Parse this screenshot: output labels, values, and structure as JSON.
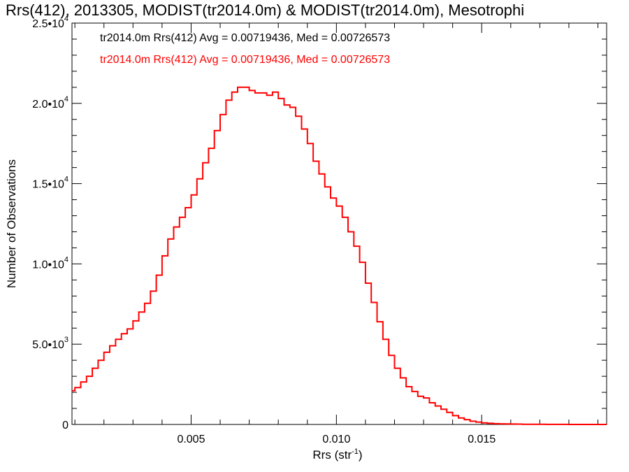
{
  "chart_data": {
    "type": "line",
    "title": "Rrs(412), 2013305, MODIST(tr2014.0m) & MODIST(tr2014.0m), Mesotrophi",
    "xlabel": "Rrs (str",
    "xlabel_sup": "-1",
    "xlabel_end": ")",
    "ylabel": "Number of Observations",
    "xlim": [
      0.0009,
      0.0193
    ],
    "ylim": [
      0,
      25000
    ],
    "x_ticks": [
      {
        "value": 0.005,
        "label": "0.005"
      },
      {
        "value": 0.01,
        "label": "0.010"
      },
      {
        "value": 0.015,
        "label": "0.015"
      }
    ],
    "y_ticks": [
      {
        "value": 0,
        "mant": "0",
        "exp": ""
      },
      {
        "value": 5000,
        "mant": "5.0•10",
        "exp": "3"
      },
      {
        "value": 10000,
        "mant": "1.0•10",
        "exp": "4"
      },
      {
        "value": 15000,
        "mant": "1.5•10",
        "exp": "4"
      },
      {
        "value": 20000,
        "mant": "2.0•10",
        "exp": "4"
      },
      {
        "value": 25000,
        "mant": "2.5•10",
        "exp": "4"
      }
    ],
    "legend": [
      {
        "text": "tr2014.0m Rrs(412) Avg = 0.00719436, Med = 0.00726573",
        "color": "#000000"
      },
      {
        "text": "tr2014.0m Rrs(412) Avg = 0.00719436, Med = 0.00726573",
        "color": "#ff0000"
      }
    ],
    "series": [
      {
        "color": "#ff0000",
        "x": [
          0.0009,
          0.001,
          0.0012,
          0.0014,
          0.0016,
          0.0018,
          0.002,
          0.0022,
          0.0024,
          0.0026,
          0.0028,
          0.003,
          0.0032,
          0.0034,
          0.0036,
          0.0038,
          0.004,
          0.0042,
          0.0044,
          0.0046,
          0.0048,
          0.005,
          0.0052,
          0.0054,
          0.0056,
          0.0058,
          0.006,
          0.0062,
          0.0064,
          0.0066,
          0.0068,
          0.007,
          0.0072,
          0.0074,
          0.0076,
          0.0078,
          0.008,
          0.0082,
          0.0084,
          0.0086,
          0.0088,
          0.009,
          0.0092,
          0.0094,
          0.0096,
          0.0098,
          0.01,
          0.0102,
          0.0104,
          0.0106,
          0.0108,
          0.011,
          0.0112,
          0.0114,
          0.0116,
          0.0118,
          0.012,
          0.0122,
          0.0124,
          0.0126,
          0.0128,
          0.013,
          0.0132,
          0.0134,
          0.0136,
          0.0138,
          0.014,
          0.0142,
          0.0144,
          0.0146,
          0.0148,
          0.015,
          0.0152,
          0.0154,
          0.0156,
          0.0158,
          0.016,
          0.0162,
          0.0164,
          0.0166,
          0.0168,
          0.017,
          0.0172,
          0.0174,
          0.0176,
          0.0178,
          0.018,
          0.0182,
          0.0184,
          0.0186,
          0.0188,
          0.019,
          0.0193
        ],
        "values": [
          2100,
          2300,
          2650,
          3000,
          3500,
          4000,
          4500,
          4900,
          5300,
          5650,
          5950,
          6450,
          7000,
          7550,
          8300,
          9300,
          10500,
          11550,
          12300,
          12900,
          13500,
          14300,
          15300,
          16300,
          17200,
          18300,
          19300,
          20200,
          20700,
          21000,
          21000,
          20800,
          20650,
          20650,
          20500,
          20700,
          20300,
          19900,
          19750,
          19200,
          18400,
          17500,
          16400,
          15600,
          14800,
          14100,
          13600,
          12900,
          12000,
          11100,
          10100,
          8800,
          7600,
          6400,
          5300,
          4300,
          3500,
          2900,
          2350,
          2050,
          1750,
          1650,
          1350,
          1150,
          950,
          750,
          550,
          400,
          300,
          200,
          150,
          100,
          70,
          50,
          40,
          30,
          25,
          20,
          15,
          10,
          10,
          8,
          6,
          5,
          4,
          3,
          2,
          2,
          1,
          1,
          1,
          0,
          0
        ]
      }
    ]
  }
}
